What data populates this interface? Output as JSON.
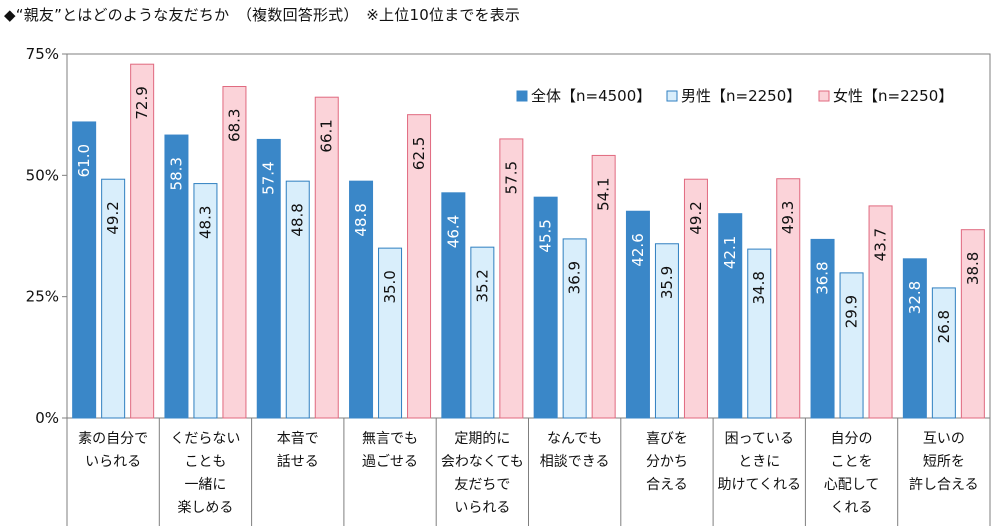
{
  "chart_data": {
    "type": "bar",
    "title": "◆“親友”とはどのような友だちか　（複数回答形式）　※上位10位までを表示",
    "ylim": [
      0,
      75
    ],
    "yticks": [
      0,
      25,
      50,
      75
    ],
    "ytick_labels": [
      "0%",
      "25%",
      "50%",
      "75%"
    ],
    "grid": false,
    "legend_position": "top-right",
    "categories": [
      [
        "素の自分で",
        "いられる"
      ],
      [
        "くだらない",
        "ことも",
        "一緒に",
        "楽しめる"
      ],
      [
        "本音で",
        "話せる"
      ],
      [
        "無言でも",
        "過ごせる"
      ],
      [
        "定期的に",
        "会わなくても",
        "友だちで",
        "いられる"
      ],
      [
        "なんでも",
        "相談できる"
      ],
      [
        "喜びを",
        "分かち",
        "合える"
      ],
      [
        "困っている",
        "ときに",
        "助けてくれる"
      ],
      [
        "自分の",
        "ことを",
        "心配して",
        "くれる"
      ],
      [
        "互いの",
        "短所を",
        "許し合える"
      ]
    ],
    "series": [
      {
        "name": "全体【n=4500】",
        "color": "#3a87c8",
        "stroke": "#3a87c8",
        "text_color": "#ffffff",
        "values": [
          61.0,
          58.3,
          57.4,
          48.8,
          46.4,
          45.5,
          42.6,
          42.1,
          36.8,
          32.8
        ],
        "labels": [
          "61.0",
          "58.3",
          "57.4",
          "48.8",
          "46.4",
          "45.5",
          "42.6",
          "42.1",
          "36.8",
          "32.8"
        ]
      },
      {
        "name": "男性【n=2250】",
        "color": "#d9eefb",
        "stroke": "#2f7fc0",
        "text_color": "#111111",
        "values": [
          49.2,
          48.3,
          48.8,
          35.0,
          35.2,
          36.9,
          35.9,
          34.8,
          29.9,
          26.8
        ],
        "labels": [
          "49.2",
          "48.3",
          "48.8",
          "35.0",
          "35.2",
          "36.9",
          "35.9",
          "34.8",
          "29.9",
          "26.8"
        ]
      },
      {
        "name": "女性【n=2250】",
        "color": "#fbd3d9",
        "stroke": "#e0697f",
        "text_color": "#111111",
        "values": [
          72.9,
          68.3,
          66.1,
          62.5,
          57.5,
          54.1,
          49.2,
          49.3,
          43.7,
          38.8
        ],
        "labels": [
          "72.9",
          "68.3",
          "66.1",
          "62.5",
          "57.5",
          "54.1",
          "49.2",
          "49.3",
          "43.7",
          "38.8"
        ]
      }
    ]
  }
}
